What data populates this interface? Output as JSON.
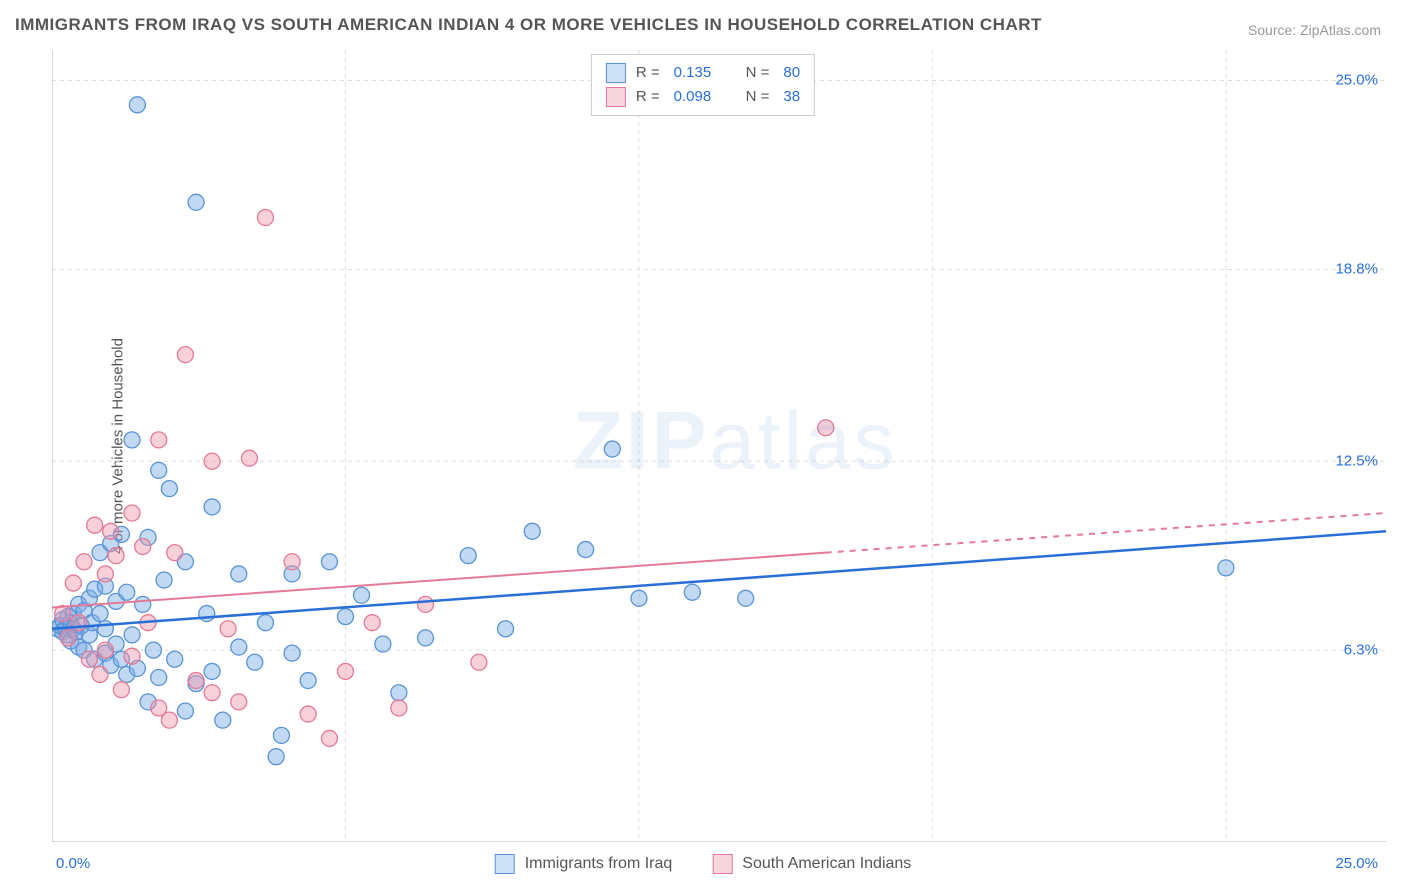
{
  "title": "IMMIGRANTS FROM IRAQ VS SOUTH AMERICAN INDIAN 4 OR MORE VEHICLES IN HOUSEHOLD CORRELATION CHART",
  "source": "Source: ZipAtlas.com",
  "ylabel": "4 or more Vehicles in Household",
  "watermark": "ZIPatlas",
  "chart": {
    "type": "scatter",
    "xlim": [
      0,
      25
    ],
    "ylim": [
      0,
      26
    ],
    "yticks": [
      {
        "v": 6.3,
        "label": "6.3%"
      },
      {
        "v": 12.5,
        "label": "12.5%"
      },
      {
        "v": 18.8,
        "label": "18.8%"
      },
      {
        "v": 25.0,
        "label": "25.0%"
      }
    ],
    "xticks_left_label": "0.0%",
    "xticks_right_label": "25.0%",
    "xgrid_vals": [
      5.5,
      11.0,
      16.5,
      22.0
    ],
    "background_color": "#ffffff",
    "grid_color": "#dddddd",
    "axis_color": "#cccccc",
    "series": [
      {
        "name": "Immigrants from Iraq",
        "color_fill": "rgba(120, 170, 230, 0.45)",
        "color_stroke": "#5a94d6",
        "swatch_fill": "#cfe1f6",
        "swatch_stroke": "#5a94d6",
        "R": "0.135",
        "N": "80",
        "marker_r": 8,
        "trend": {
          "x1": 0,
          "y1": 7.0,
          "x2": 25,
          "y2": 10.2,
          "color": "#2a6fd6",
          "width": 2.5
        },
        "data": [
          [
            0.1,
            7.0
          ],
          [
            0.15,
            7.1
          ],
          [
            0.2,
            6.9
          ],
          [
            0.2,
            7.3
          ],
          [
            0.25,
            7.0
          ],
          [
            0.3,
            6.8
          ],
          [
            0.3,
            7.4
          ],
          [
            0.35,
            7.2
          ],
          [
            0.35,
            6.6
          ],
          [
            0.4,
            7.5
          ],
          [
            0.4,
            7.0
          ],
          [
            0.45,
            6.9
          ],
          [
            0.5,
            7.8
          ],
          [
            0.5,
            6.4
          ],
          [
            0.55,
            7.1
          ],
          [
            0.6,
            7.6
          ],
          [
            0.6,
            6.3
          ],
          [
            0.7,
            8.0
          ],
          [
            0.7,
            6.8
          ],
          [
            0.75,
            7.2
          ],
          [
            0.8,
            8.3
          ],
          [
            0.8,
            6.0
          ],
          [
            0.9,
            7.5
          ],
          [
            0.9,
            9.5
          ],
          [
            1.0,
            7.0
          ],
          [
            1.0,
            6.2
          ],
          [
            1.0,
            8.4
          ],
          [
            1.1,
            5.8
          ],
          [
            1.1,
            9.8
          ],
          [
            1.2,
            6.5
          ],
          [
            1.2,
            7.9
          ],
          [
            1.3,
            10.1
          ],
          [
            1.3,
            6.0
          ],
          [
            1.4,
            8.2
          ],
          [
            1.4,
            5.5
          ],
          [
            1.5,
            13.2
          ],
          [
            1.5,
            6.8
          ],
          [
            1.6,
            24.2
          ],
          [
            1.6,
            5.7
          ],
          [
            1.7,
            7.8
          ],
          [
            1.8,
            10.0
          ],
          [
            1.8,
            4.6
          ],
          [
            1.9,
            6.3
          ],
          [
            2.0,
            12.2
          ],
          [
            2.0,
            5.4
          ],
          [
            2.1,
            8.6
          ],
          [
            2.2,
            11.6
          ],
          [
            2.3,
            6.0
          ],
          [
            2.5,
            4.3
          ],
          [
            2.5,
            9.2
          ],
          [
            2.7,
            5.2
          ],
          [
            2.7,
            21.0
          ],
          [
            2.9,
            7.5
          ],
          [
            3.0,
            5.6
          ],
          [
            3.0,
            11.0
          ],
          [
            3.2,
            4.0
          ],
          [
            3.5,
            6.4
          ],
          [
            3.5,
            8.8
          ],
          [
            3.8,
            5.9
          ],
          [
            4.0,
            7.2
          ],
          [
            4.2,
            2.8
          ],
          [
            4.3,
            3.5
          ],
          [
            4.5,
            8.8
          ],
          [
            4.5,
            6.2
          ],
          [
            4.8,
            5.3
          ],
          [
            5.2,
            9.2
          ],
          [
            5.5,
            7.4
          ],
          [
            5.8,
            8.1
          ],
          [
            6.2,
            6.5
          ],
          [
            6.5,
            4.9
          ],
          [
            7.0,
            6.7
          ],
          [
            7.8,
            9.4
          ],
          [
            8.5,
            7.0
          ],
          [
            9.0,
            10.2
          ],
          [
            10.0,
            9.6
          ],
          [
            10.5,
            12.9
          ],
          [
            11.0,
            8.0
          ],
          [
            12.0,
            8.2
          ],
          [
            13.0,
            8.0
          ],
          [
            22.0,
            9.0
          ]
        ]
      },
      {
        "name": "South American Indians",
        "color_fill": "rgba(240, 150, 170, 0.45)",
        "color_stroke": "#e47a96",
        "swatch_fill": "#f6d6de",
        "swatch_stroke": "#e47a96",
        "R": "0.098",
        "N": "38",
        "marker_r": 8,
        "trend": {
          "x1": 0,
          "y1": 7.7,
          "x2": 25,
          "y2": 10.8,
          "solid_until_x": 14.5,
          "color": "#e47a96",
          "width": 2
        },
        "data": [
          [
            0.2,
            7.5
          ],
          [
            0.3,
            6.7
          ],
          [
            0.4,
            8.5
          ],
          [
            0.5,
            7.2
          ],
          [
            0.6,
            9.2
          ],
          [
            0.7,
            6.0
          ],
          [
            0.8,
            10.4
          ],
          [
            0.9,
            5.5
          ],
          [
            1.0,
            8.8
          ],
          [
            1.0,
            6.3
          ],
          [
            1.1,
            10.2
          ],
          [
            1.2,
            9.4
          ],
          [
            1.3,
            5.0
          ],
          [
            1.5,
            10.8
          ],
          [
            1.5,
            6.1
          ],
          [
            1.7,
            9.7
          ],
          [
            1.8,
            7.2
          ],
          [
            2.0,
            13.2
          ],
          [
            2.0,
            4.4
          ],
          [
            2.2,
            4.0
          ],
          [
            2.3,
            9.5
          ],
          [
            2.5,
            16.0
          ],
          [
            2.7,
            5.3
          ],
          [
            3.0,
            12.5
          ],
          [
            3.0,
            4.9
          ],
          [
            3.3,
            7.0
          ],
          [
            3.5,
            4.6
          ],
          [
            3.7,
            12.6
          ],
          [
            4.0,
            20.5
          ],
          [
            4.5,
            9.2
          ],
          [
            4.8,
            4.2
          ],
          [
            5.2,
            3.4
          ],
          [
            5.5,
            5.6
          ],
          [
            6.0,
            7.2
          ],
          [
            6.5,
            4.4
          ],
          [
            7.0,
            7.8
          ],
          [
            8.0,
            5.9
          ],
          [
            14.5,
            13.6
          ]
        ]
      }
    ]
  }
}
